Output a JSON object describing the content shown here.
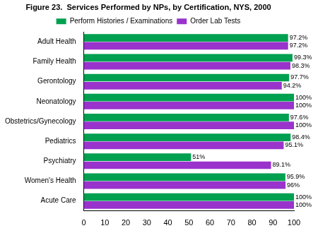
{
  "chart_data": {
    "type": "bar",
    "orientation": "horizontal",
    "title": "Figure 23.  Services Performed by NPs, by Certification, NYS, 2000",
    "categories": [
      "Adult Health",
      "Family Health",
      "Gerontology",
      "Neonatology",
      "Obstetrics/Gynecology",
      "Pediatrics",
      "Psychiatry",
      "Women's Health",
      "Acute Care"
    ],
    "series": [
      {
        "name": "Perform Histories / Examinations",
        "color": "#00a050",
        "values": [
          97.2,
          99.3,
          97.7,
          100,
          97.6,
          98.4,
          51,
          95.9,
          100
        ],
        "value_labels": [
          "97.2%",
          "99.3%",
          "97.7%",
          "100%",
          "97.6%",
          "98.4%",
          "51%",
          "95.9%",
          "100%"
        ]
      },
      {
        "name": "Order Lab Tests",
        "color": "#9933cc",
        "values": [
          97.2,
          98.3,
          94.2,
          100,
          100,
          95.1,
          89.1,
          96,
          100
        ],
        "value_labels": [
          "97.2%",
          "98.3%",
          "94.2%",
          "100%",
          "100%",
          "95.1%",
          "89.1%",
          "96%",
          "100%"
        ]
      }
    ],
    "xlim": [
      0,
      100
    ],
    "xticks": [
      0,
      10,
      20,
      30,
      40,
      50,
      60,
      70,
      80,
      90,
      100
    ],
    "grid": false,
    "legend": "top",
    "data_labels": true
  }
}
